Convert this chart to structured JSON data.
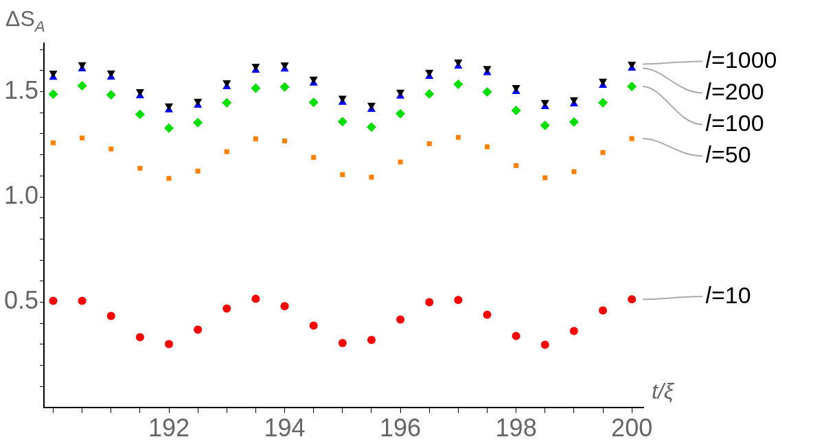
{
  "chart_data": {
    "type": "scatter",
    "xlabel": "t/ξ",
    "ylabel": "ΔS$_{A}$",
    "x": [
      190,
      190.5,
      191,
      191.5,
      192,
      192.5,
      193,
      193.5,
      194,
      194.5,
      195,
      195.5,
      196,
      196.5,
      197,
      197.5,
      198,
      198.5,
      199,
      199.5,
      200
    ],
    "series": [
      {
        "name": "𝑙=1000",
        "color": "#000000",
        "marker": "triangle-down",
        "values": [
          1.588,
          1.628,
          1.589,
          1.5,
          1.433,
          1.455,
          1.543,
          1.621,
          1.627,
          1.56,
          1.469,
          1.436,
          1.498,
          1.592,
          1.641,
          1.61,
          1.52,
          1.449,
          1.462,
          1.55,
          1.631
        ]
      },
      {
        "name": "𝑙=200",
        "color": "#0000ff",
        "marker": "triangle",
        "values": [
          1.568,
          1.608,
          1.569,
          1.48,
          1.413,
          1.435,
          1.523,
          1.601,
          1.607,
          1.54,
          1.449,
          1.416,
          1.478,
          1.572,
          1.621,
          1.59,
          1.5,
          1.429,
          1.442,
          1.53,
          1.611
        ]
      },
      {
        "name": "𝑙=100",
        "color": "#00e000",
        "marker": "diamond",
        "values": [
          1.488,
          1.528,
          1.485,
          1.392,
          1.327,
          1.353,
          1.447,
          1.517,
          1.522,
          1.449,
          1.358,
          1.332,
          1.395,
          1.489,
          1.535,
          1.499,
          1.411,
          1.34,
          1.356,
          1.447,
          1.525
        ]
      },
      {
        "name": "𝑙=50",
        "color": "#ff8000",
        "marker": "square",
        "values": [
          1.257,
          1.28,
          1.228,
          1.136,
          1.088,
          1.123,
          1.215,
          1.276,
          1.266,
          1.188,
          1.106,
          1.094,
          1.166,
          1.253,
          1.283,
          1.238,
          1.149,
          1.091,
          1.12,
          1.211,
          1.277
        ]
      },
      {
        "name": "𝑙=10",
        "color": "#ff0000",
        "marker": "circle",
        "values": [
          0.507,
          0.507,
          0.435,
          0.334,
          0.301,
          0.37,
          0.47,
          0.516,
          0.481,
          0.389,
          0.306,
          0.321,
          0.418,
          0.5,
          0.511,
          0.441,
          0.34,
          0.298,
          0.363,
          0.461,
          0.514
        ]
      }
    ],
    "xlim": [
      189.84,
      200.2
    ],
    "xticks": [
      {
        "value": 190,
        "label": null
      },
      {
        "value": 190.5,
        "label": null
      },
      {
        "value": 191,
        "label": null
      },
      {
        "value": 191.5,
        "label": null
      },
      192,
      {
        "value": 192.5,
        "label": null
      },
      {
        "value": 193,
        "label": null
      },
      {
        "value": 193.5,
        "label": null
      },
      194,
      {
        "value": 194.5,
        "label": null
      },
      {
        "value": 195,
        "label": null
      },
      {
        "value": 195.5,
        "label": null
      },
      196,
      {
        "value": 196.5,
        "label": null
      },
      {
        "value": 197,
        "label": null
      },
      {
        "value": 197.5,
        "label": null
      },
      198,
      {
        "value": 198.5,
        "label": null
      },
      {
        "value": 199,
        "label": null
      },
      {
        "value": 199.5,
        "label": null
      },
      200
    ],
    "ylim": [
      0,
      1.73
    ],
    "yticks": [
      {
        "value": 0.1,
        "label": null
      },
      {
        "value": 0.2,
        "label": null
      },
      {
        "value": 0.3,
        "label": null
      },
      {
        "value": 0.4,
        "label": null
      },
      0.5,
      {
        "value": 0.6,
        "label": null
      },
      {
        "value": 0.7,
        "label": null
      },
      {
        "value": 0.8,
        "label": null
      },
      {
        "value": 0.9,
        "label": null
      },
      {
        "value": 1,
        "label": "1.0"
      },
      {
        "value": 1.1,
        "label": null
      },
      {
        "value": 1.2,
        "label": null
      },
      {
        "value": 1.3,
        "label": null
      },
      {
        "value": 1.4,
        "label": null
      },
      1.5,
      {
        "value": 1.6,
        "label": null
      },
      {
        "value": 1.7,
        "label": null
      }
    ],
    "grid": false,
    "legend": false
  }
}
